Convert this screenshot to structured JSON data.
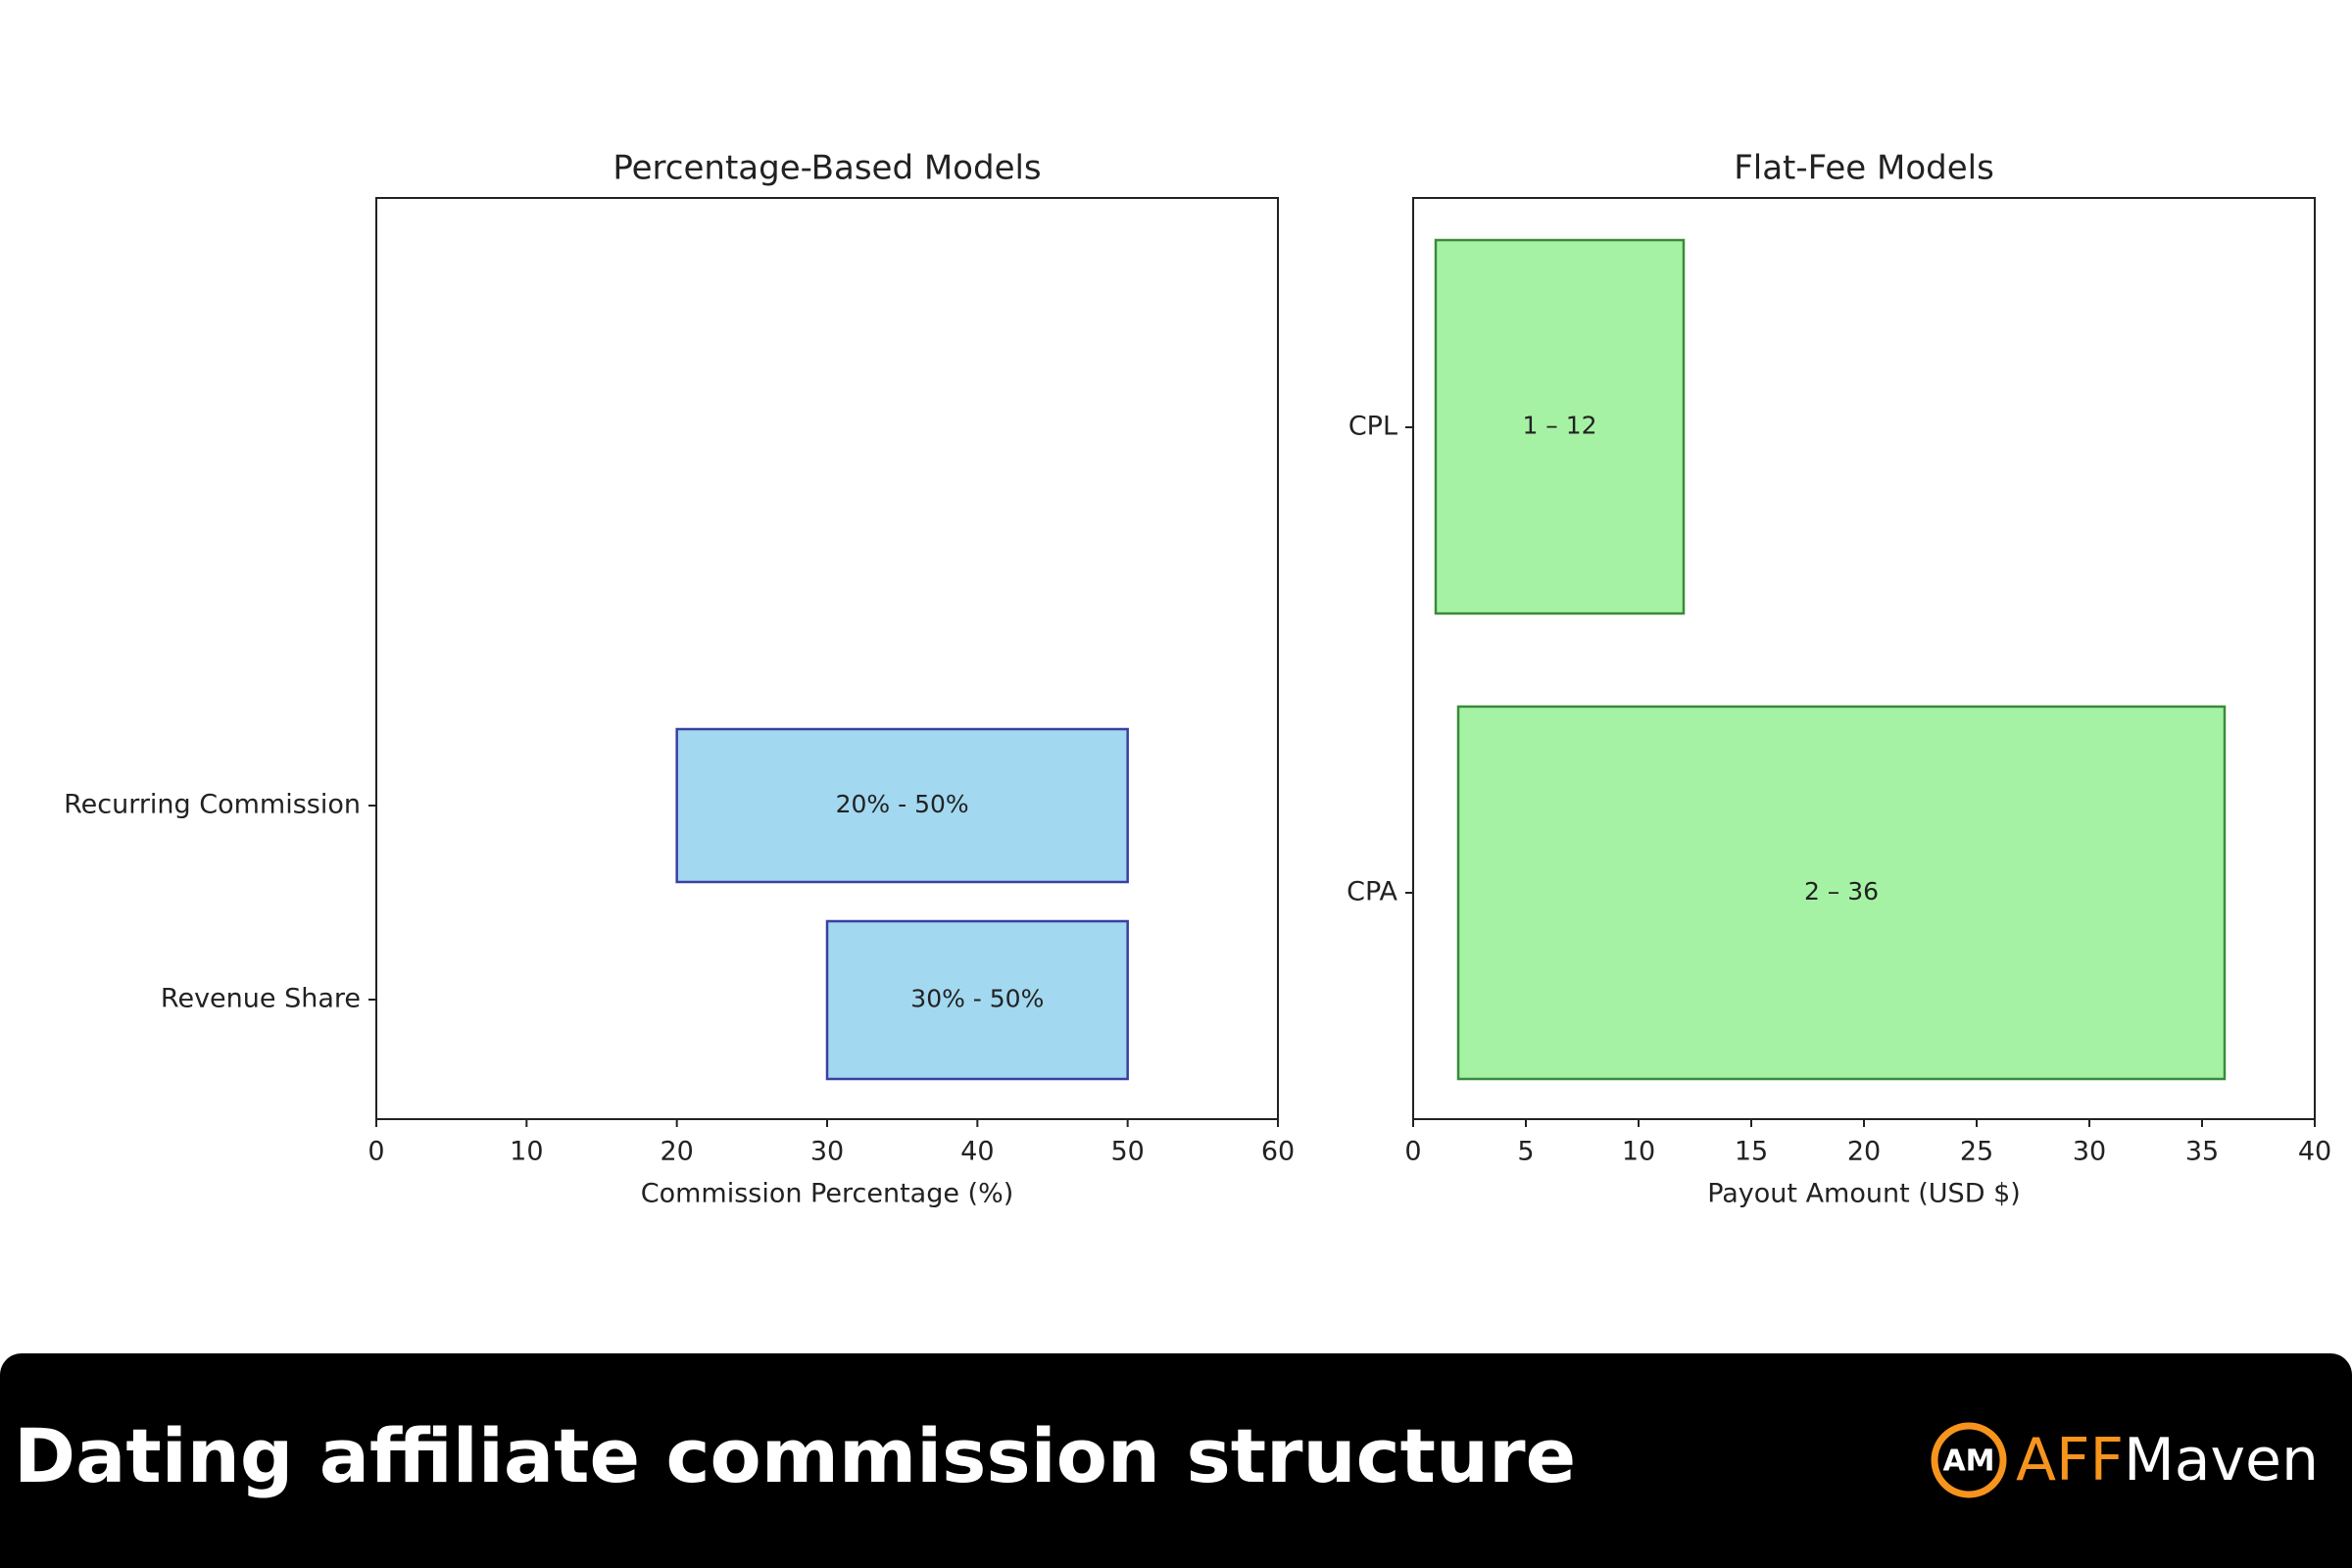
{
  "chart_data": [
    {
      "type": "bar",
      "title": "Percentage-Based Models",
      "xlabel": "Commission Percentage (%)",
      "categories": [
        "Recurring Commission",
        "Revenue Share"
      ],
      "starts": [
        20,
        30
      ],
      "ends": [
        50,
        50
      ],
      "value_labels": [
        "20% - 50%",
        "30% - 50%"
      ],
      "color": "#a2d8f0",
      "edge_color": "#3b3fa3",
      "xlim": [
        0,
        60
      ],
      "xticks": [
        0,
        10,
        20,
        30,
        40,
        50,
        60
      ]
    },
    {
      "type": "bar",
      "title": "Flat-Fee Models",
      "xlabel": "Payout Amount (USD $)",
      "categories": [
        "CPL",
        "CPA"
      ],
      "starts": [
        1,
        2
      ],
      "ends": [
        12,
        36
      ],
      "value_labels": [
        "1 – 12",
        "2 – 36"
      ],
      "color": "#a6f2a4",
      "edge_color": "#3a8a3a",
      "xlim": [
        0,
        40
      ],
      "xticks": [
        0,
        5,
        10,
        15,
        20,
        25,
        30,
        35,
        40
      ]
    }
  ],
  "footer": {
    "title": "Dating affiliate commission structure",
    "logo_mark": "AM",
    "logo_aff": "AFF",
    "logo_maven": "Maven"
  }
}
